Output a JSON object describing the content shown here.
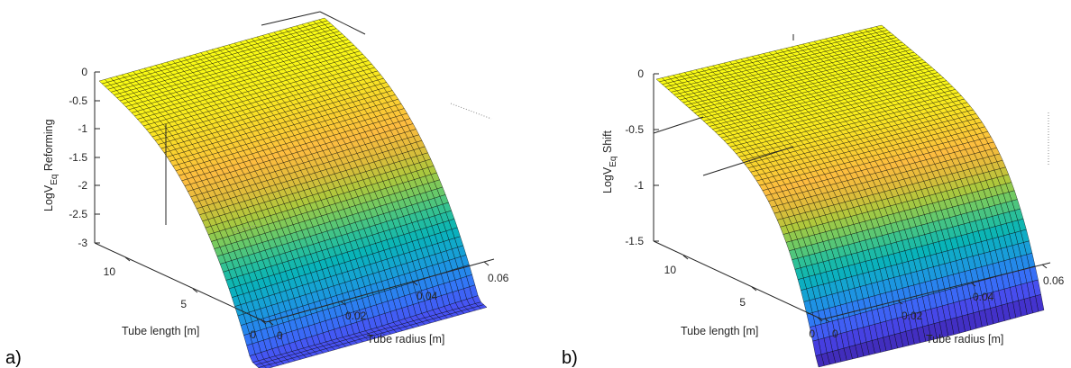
{
  "chart_data": [
    {
      "type": "surface",
      "panel_label": "a)",
      "xlabel": "Tube radius [m]",
      "ylabel": "Tube length [m]",
      "zlabel_main": "LogV",
      "zlabel_sub": "Eq",
      "zlabel_suffix": " Reforming",
      "xlim": [
        0,
        0.065
      ],
      "ylim": [
        0,
        13
      ],
      "zlim": [
        -3,
        0
      ],
      "x_ticks": [
        "0",
        "0.02",
        "0.04",
        "0.06"
      ],
      "y_ticks": [
        "0",
        "5",
        "10"
      ],
      "z_ticks": [
        "0",
        "-0.5",
        "-1",
        "-1.5",
        "-2",
        "-2.5",
        "-3"
      ],
      "colormap": "parula",
      "surface_floor": -2.55
    },
    {
      "type": "surface",
      "panel_label": "b)",
      "xlabel": "Tube radius [m]",
      "ylabel": "Tube length [m]",
      "zlabel_main": "LogV",
      "zlabel_sub": "Eq",
      "zlabel_suffix": " Shift",
      "xlim": [
        0,
        0.065
      ],
      "ylim": [
        0,
        13
      ],
      "zlim": [
        -1.5,
        0
      ],
      "x_ticks": [
        "0",
        "0.02",
        "0.04",
        "0.06"
      ],
      "y_ticks": [
        "0",
        "5",
        "10"
      ],
      "z_ticks": [
        "0",
        "-0.5",
        "-1",
        "-1.5"
      ],
      "colormap": "parula",
      "surface_floor": -1.5
    }
  ]
}
